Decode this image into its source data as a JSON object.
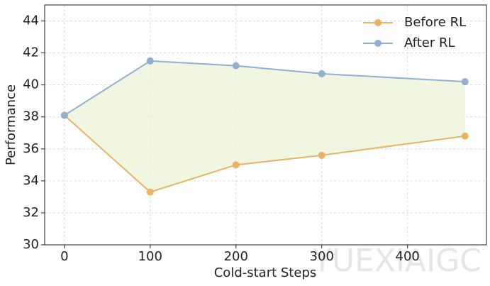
{
  "chart_data": {
    "type": "line",
    "xlabel": "Cold-start Steps",
    "ylabel": "Performance",
    "x": [
      0,
      100,
      200,
      300,
      467
    ],
    "series": [
      {
        "name": "Before RL",
        "color": "#e9b265",
        "values": [
          38.1,
          33.3,
          35.0,
          35.6,
          36.8
        ]
      },
      {
        "name": "After RL",
        "color": "#8fb0d2",
        "values": [
          38.1,
          41.5,
          41.2,
          40.7,
          40.2
        ]
      }
    ],
    "fill_between": true,
    "fill_color": "#eef5dc",
    "xlim": [
      -23,
      492
    ],
    "xticks": [
      0,
      100,
      200,
      300,
      400
    ],
    "ylim": [
      30,
      45
    ],
    "yticks": [
      30,
      32,
      34,
      36,
      38,
      40,
      42,
      44
    ],
    "grid": true,
    "legend": "upper right",
    "watermark": "YUEXIAIGC"
  }
}
